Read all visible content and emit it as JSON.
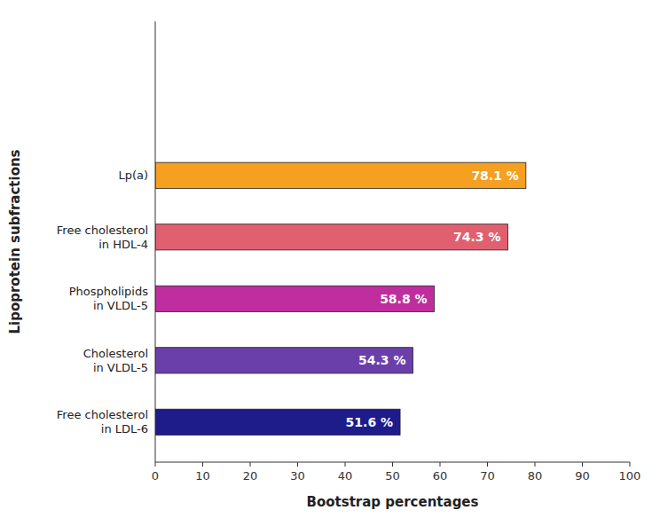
{
  "chart_data": {
    "type": "bar",
    "orientation": "horizontal",
    "categories": [
      "Free cholesterol\nin LDL-6",
      "Cholesterol\nin VLDL-5",
      "Phospholipids\nin VLDL-5",
      "Free cholesterol\nin HDL-4",
      "Lp(a)"
    ],
    "values": [
      51.6,
      54.3,
      58.8,
      74.3,
      78.1
    ],
    "value_labels": [
      "51.6 %",
      "54.3 %",
      "58.8 %",
      "74.3 %",
      "78.1 %"
    ],
    "data_labels": true,
    "colors": [
      "#1e1b8b",
      "#6b3faa",
      "#bf2d9e",
      "#e06070",
      "#f5a020"
    ],
    "xlabel": "Bootstrap percentages",
    "ylabel": "Lipoprotein subfractions",
    "xlim": [
      0,
      100
    ],
    "xticks": [
      0,
      10,
      20,
      30,
      40,
      50,
      60,
      70,
      80,
      90,
      100
    ],
    "grid": false
  }
}
